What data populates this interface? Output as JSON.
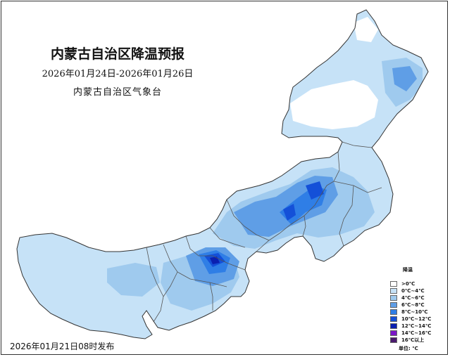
{
  "map": {
    "title": "内蒙古自治区降温预报",
    "date_range": "2026年01月24日-2026年01月26日",
    "issuer": "内蒙古自治区气象台",
    "release_time": "2026年01月21日08时发布"
  },
  "legend": {
    "title": "降温",
    "unit": "单位: ℃",
    "items": [
      {
        "label": ">0℃",
        "color": "#ffffff"
      },
      {
        "label": "0℃~4℃",
        "color": "#c6e2f7"
      },
      {
        "label": "4℃~6℃",
        "color": "#9fcaee"
      },
      {
        "label": "6℃~8℃",
        "color": "#5f9ee6"
      },
      {
        "label": "8℃~10℃",
        "color": "#2f7ee6"
      },
      {
        "label": "10℃~12℃",
        "color": "#1450d8"
      },
      {
        "label": "12℃~14℃",
        "color": "#0a1fb0"
      },
      {
        "label": "14℃~16℃",
        "color": "#7b17c8"
      },
      {
        "label": "16℃以上",
        "color": "#4a1a6e"
      }
    ]
  }
}
